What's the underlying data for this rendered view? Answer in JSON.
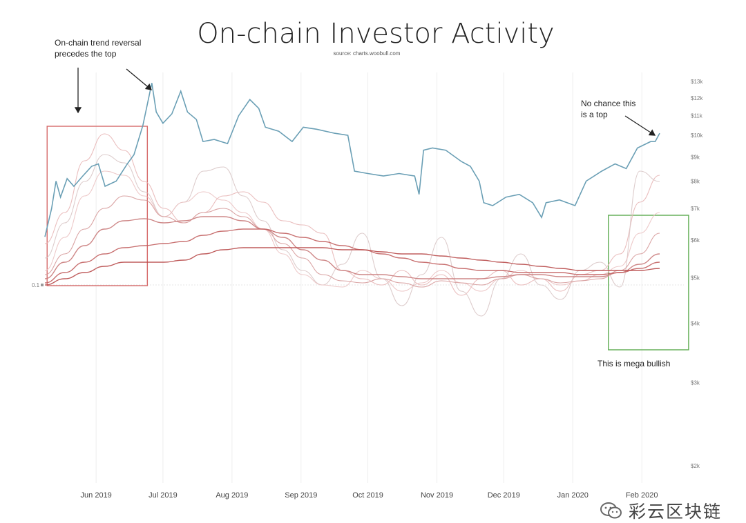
{
  "chart_data": {
    "type": "line",
    "title": "On-chain Investor Activity",
    "subtitle": "source: charts.woobull.com",
    "x_ticks": [
      "Jun 2019",
      "Jul 2019",
      "Aug 2019",
      "Sep 2019",
      "Oct 2019",
      "Nov 2019",
      "Dec 2019",
      "Jan 2020",
      "Feb 2020"
    ],
    "y_right_ticks": [
      "$13k",
      "$12k",
      "$11k",
      "$10k",
      "$9k",
      "$8k",
      "$7k",
      "$6k",
      "$5k",
      "$4k",
      "$3k",
      "$2k"
    ],
    "y_right_scale": "log",
    "y_left_tick": "0.1",
    "x_range": [
      "2019-05-09",
      "2020-02-09"
    ],
    "price_series": {
      "color": "#6a9fb5",
      "points": [
        [
          "2019-05-09",
          6100
        ],
        [
          "2019-05-12",
          7000
        ],
        [
          "2019-05-14",
          8000
        ],
        [
          "2019-05-16",
          7400
        ],
        [
          "2019-05-19",
          8100
        ],
        [
          "2019-05-22",
          7800
        ],
        [
          "2019-05-26",
          8200
        ],
        [
          "2019-05-30",
          8600
        ],
        [
          "2019-06-02",
          8700
        ],
        [
          "2019-06-05",
          7800
        ],
        [
          "2019-06-10",
          8000
        ],
        [
          "2019-06-15",
          8700
        ],
        [
          "2019-06-18",
          9100
        ],
        [
          "2019-06-22",
          10500
        ],
        [
          "2019-06-26",
          12900
        ],
        [
          "2019-06-28",
          11200
        ],
        [
          "2019-07-01",
          10600
        ],
        [
          "2019-07-05",
          11100
        ],
        [
          "2019-07-09",
          12400
        ],
        [
          "2019-07-12",
          11200
        ],
        [
          "2019-07-16",
          10800
        ],
        [
          "2019-07-19",
          9700
        ],
        [
          "2019-07-24",
          9800
        ],
        [
          "2019-07-30",
          9600
        ],
        [
          "2019-08-04",
          11000
        ],
        [
          "2019-08-09",
          11900
        ],
        [
          "2019-08-13",
          11400
        ],
        [
          "2019-08-16",
          10400
        ],
        [
          "2019-08-22",
          10200
        ],
        [
          "2019-08-28",
          9700
        ],
        [
          "2019-09-02",
          10400
        ],
        [
          "2019-09-08",
          10300
        ],
        [
          "2019-09-16",
          10100
        ],
        [
          "2019-09-22",
          10000
        ],
        [
          "2019-09-25",
          8400
        ],
        [
          "2019-10-01",
          8300
        ],
        [
          "2019-10-08",
          8200
        ],
        [
          "2019-10-15",
          8300
        ],
        [
          "2019-10-22",
          8200
        ],
        [
          "2019-10-24",
          7500
        ],
        [
          "2019-10-26",
          9300
        ],
        [
          "2019-10-30",
          9400
        ],
        [
          "2019-11-05",
          9300
        ],
        [
          "2019-11-12",
          8800
        ],
        [
          "2019-11-16",
          8600
        ],
        [
          "2019-11-20",
          8000
        ],
        [
          "2019-11-22",
          7200
        ],
        [
          "2019-11-26",
          7100
        ],
        [
          "2019-12-02",
          7400
        ],
        [
          "2019-12-08",
          7500
        ],
        [
          "2019-12-14",
          7200
        ],
        [
          "2019-12-18",
          6700
        ],
        [
          "2019-12-20",
          7200
        ],
        [
          "2019-12-26",
          7300
        ],
        [
          "2020-01-02",
          7100
        ],
        [
          "2020-01-07",
          8000
        ],
        [
          "2020-01-14",
          8400
        ],
        [
          "2020-01-20",
          8700
        ],
        [
          "2020-01-25",
          8500
        ],
        [
          "2020-01-30",
          9400
        ],
        [
          "2020-02-05",
          9700
        ],
        [
          "2020-02-07",
          9700
        ],
        [
          "2020-02-09",
          10100
        ]
      ]
    },
    "indicator_series": [
      {
        "color": "#e8b7b7",
        "values": [
          0.75,
          0.9,
          1.15,
          1.28,
          1.2,
          1.05,
          0.92,
          0.85,
          0.9,
          0.98,
          1.0,
          0.95,
          0.86,
          0.84,
          0.8,
          0.62,
          0.58,
          0.55,
          0.62,
          0.55,
          0.6,
          0.5,
          0.58,
          0.62,
          0.55,
          0.58,
          0.52,
          0.6,
          0.62,
          0.7,
          0.95,
          1.08
        ]
      },
      {
        "color": "#d9c7c7",
        "values": [
          0.68,
          0.85,
          1.05,
          1.18,
          1.14,
          1.0,
          0.88,
          0.95,
          1.1,
          1.12,
          0.98,
          0.86,
          0.72,
          0.62,
          0.55,
          0.65,
          0.8,
          0.58,
          0.45,
          0.6,
          0.78,
          0.52,
          0.4,
          0.58,
          0.7,
          0.55,
          0.48,
          0.62,
          0.66,
          0.54,
          1.1,
          1.05
        ]
      },
      {
        "color": "#ebc3c3",
        "values": [
          0.62,
          0.78,
          0.98,
          1.1,
          1.08,
          0.98,
          0.88,
          0.95,
          1.0,
          0.96,
          0.9,
          0.82,
          0.7,
          0.6,
          0.55,
          0.54,
          0.62,
          0.58,
          0.52,
          0.56,
          0.62,
          0.56,
          0.52,
          0.58,
          0.62,
          0.58,
          0.55,
          0.57,
          0.6,
          0.64,
          0.8,
          0.9
        ]
      },
      {
        "color": "#d69a9a",
        "values": [
          0.6,
          0.7,
          0.82,
          0.92,
          0.98,
          0.96,
          0.88,
          0.85,
          0.9,
          0.92,
          0.88,
          0.82,
          0.75,
          0.68,
          0.6,
          0.57,
          0.56,
          0.58,
          0.56,
          0.54,
          0.57,
          0.56,
          0.55,
          0.58,
          0.6,
          0.58,
          0.56,
          0.57,
          0.58,
          0.62,
          0.7,
          0.8
        ]
      },
      {
        "color": "#c97a7a",
        "values": [
          0.58,
          0.66,
          0.74,
          0.82,
          0.86,
          0.87,
          0.85,
          0.86,
          0.88,
          0.88,
          0.86,
          0.82,
          0.78,
          0.72,
          0.67,
          0.62,
          0.6,
          0.6,
          0.59,
          0.58,
          0.58,
          0.58,
          0.58,
          0.59,
          0.6,
          0.6,
          0.59,
          0.59,
          0.59,
          0.61,
          0.65,
          0.7
        ]
      },
      {
        "color": "#c26060",
        "values": [
          0.56,
          0.61,
          0.66,
          0.7,
          0.73,
          0.74,
          0.75,
          0.76,
          0.79,
          0.81,
          0.82,
          0.82,
          0.8,
          0.78,
          0.76,
          0.74,
          0.72,
          0.7,
          0.68,
          0.66,
          0.65,
          0.63,
          0.62,
          0.62,
          0.61,
          0.61,
          0.61,
          0.6,
          0.6,
          0.61,
          0.63,
          0.66
        ]
      },
      {
        "color": "#b84a4a",
        "values": [
          0.55,
          0.58,
          0.61,
          0.64,
          0.66,
          0.66,
          0.66,
          0.67,
          0.7,
          0.72,
          0.73,
          0.73,
          0.73,
          0.73,
          0.73,
          0.72,
          0.72,
          0.71,
          0.7,
          0.7,
          0.69,
          0.68,
          0.67,
          0.66,
          0.65,
          0.64,
          0.63,
          0.62,
          0.62,
          0.62,
          0.62,
          0.63
        ]
      }
    ],
    "annotations": [
      {
        "text": "On-chain trend reversal",
        "text2": "precedes the top"
      },
      {
        "text": "No chance this",
        "text2": "is a top"
      },
      {
        "text": "This is mega bullish"
      }
    ],
    "highlight_boxes": [
      {
        "color": "#d66a6a",
        "x_range": [
          "2019-05-10",
          "2019-06-24"
        ]
      },
      {
        "color": "#5cab4f",
        "x_range": [
          "2020-01-17",
          "2020-02-22"
        ]
      }
    ],
    "grid": true,
    "legend": "none"
  },
  "watermark": {
    "text": "彩云区块链"
  }
}
